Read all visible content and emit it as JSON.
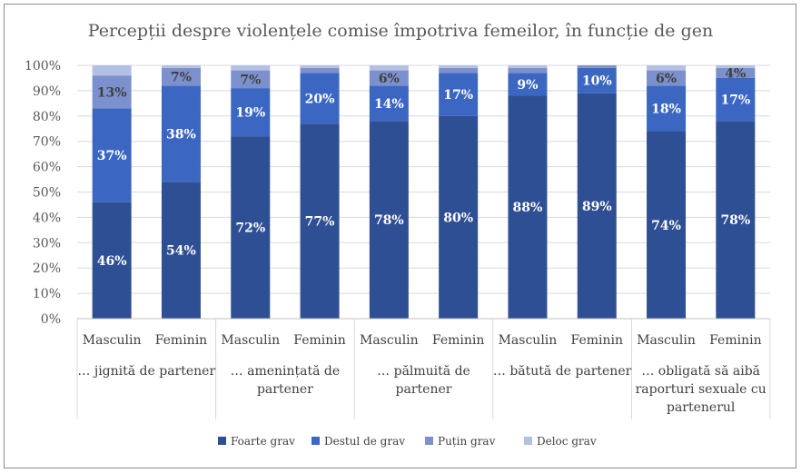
{
  "chart_data": {
    "type": "bar",
    "stacked": true,
    "title": "Percepții despre violențele comise împotriva femeilor, în funcție de gen",
    "ylim": [
      0,
      100
    ],
    "yticks": [
      "0%",
      "10%",
      "20%",
      "30%",
      "40%",
      "50%",
      "60%",
      "70%",
      "80%",
      "90%",
      "100%"
    ],
    "groups": [
      {
        "label": "… jignită de partener",
        "categories": [
          "Masculin",
          "Feminin"
        ]
      },
      {
        "label": "… amenințată de partener",
        "categories": [
          "Masculin",
          "Feminin"
        ]
      },
      {
        "label": "… pălmuită de partener",
        "categories": [
          "Masculin",
          "Feminin"
        ]
      },
      {
        "label": "… bătută de partener",
        "categories": [
          "Masculin",
          "Feminin"
        ]
      },
      {
        "label": "… obligată să aibă raporturi sexuale cu partenerul",
        "categories": [
          "Masculin",
          "Feminin"
        ]
      }
    ],
    "series": [
      {
        "name": "Foarte grav",
        "color": "#2f4f94",
        "label_color": "#ffffff",
        "values": [
          46,
          54,
          72,
          77,
          78,
          80,
          88,
          89,
          74,
          78
        ],
        "labels": [
          "46%",
          "54%",
          "72%",
          "77%",
          "78%",
          "80%",
          "88%",
          "89%",
          "74%",
          "78%"
        ]
      },
      {
        "name": "Destul de grav",
        "color": "#3b67c2",
        "label_color": "#ffffff",
        "values": [
          37,
          38,
          19,
          20,
          14,
          17,
          9,
          10,
          18,
          17
        ],
        "labels": [
          "37%",
          "38%",
          "19%",
          "20%",
          "14%",
          "17%",
          "9%",
          "10%",
          "18%",
          "17%"
        ]
      },
      {
        "name": "Puțin grav",
        "color": "#7b90cc",
        "label_color": "#404040",
        "values": [
          13,
          7,
          7,
          2,
          6,
          2,
          2,
          1,
          6,
          4
        ],
        "labels": [
          "13%",
          "7%",
          "7%",
          "",
          "6%",
          "",
          "",
          "",
          "6%",
          "4%"
        ]
      },
      {
        "name": "Deloc grav",
        "color": "#b4c0e2",
        "label_color": "#404040",
        "values": [
          4,
          1,
          2,
          1,
          2,
          1,
          1,
          0,
          2,
          1
        ],
        "labels": [
          "",
          "",
          "",
          "",
          "",
          "",
          "",
          "",
          "",
          ""
        ]
      }
    ]
  }
}
